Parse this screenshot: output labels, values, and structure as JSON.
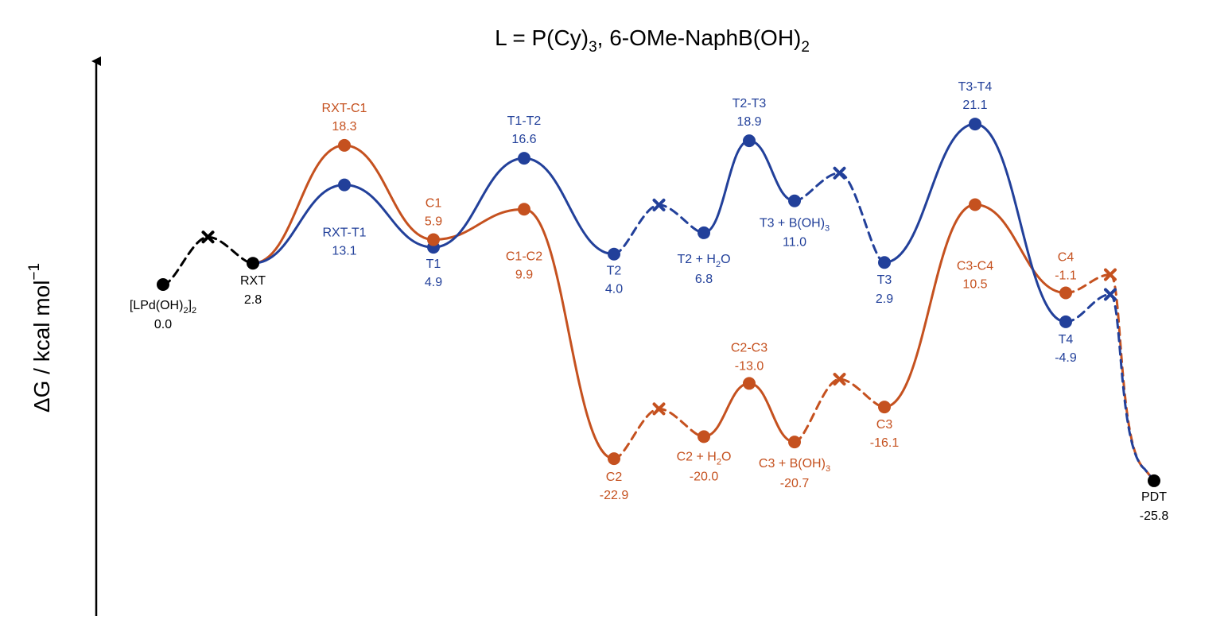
{
  "chart_data": {
    "type": "line",
    "title": {
      "main": "L = P(Cy)",
      "sub1": "3",
      "mid": ", 6-OMe-NaphB(OH)",
      "sub2": "2"
    },
    "ylabel": {
      "main": "ΔG / kcal mol",
      "sup": "−1"
    },
    "colors": {
      "shared": "#000000",
      "T": "#22409a",
      "C": "#c5511f"
    },
    "shared_points": [
      {
        "id": "LPdOH2",
        "name_main": "[LPd(OH)",
        "name_sub": "2",
        "name_bracket": "]",
        "name_sub2": "2",
        "value": "0.0",
        "y": 0.0
      },
      {
        "id": "RXT",
        "name": "RXT",
        "value": "2.8",
        "y": 2.8
      },
      {
        "id": "PDT",
        "name": "PDT",
        "value": "-25.8",
        "y": -25.8
      }
    ],
    "series": [
      {
        "name": "T",
        "points": [
          {
            "id": "RXT-T1",
            "name": "RXT-T1",
            "value": "13.1",
            "y": 13.1
          },
          {
            "id": "T1",
            "name": "T1",
            "value": "4.9",
            "y": 4.9
          },
          {
            "id": "T1-T2",
            "name": "T1-T2",
            "value": "16.6",
            "y": 16.6
          },
          {
            "id": "T2",
            "name": "T2",
            "value": "4.0",
            "y": 4.0
          },
          {
            "id": "T2+H2O",
            "name_main": "T2 + H",
            "name_sub": "2",
            "name_tail": "O",
            "value": "6.8",
            "y": 6.8
          },
          {
            "id": "T2-T3",
            "name": "T2-T3",
            "value": "18.9",
            "y": 18.9
          },
          {
            "id": "T3+BOH3",
            "name_main": "T3 + B(OH)",
            "name_sub": "3",
            "name_tail": "",
            "value": "11.0",
            "y": 11.0
          },
          {
            "id": "T3",
            "name": "T3",
            "value": "2.9",
            "y": 2.9
          },
          {
            "id": "T3-T4",
            "name": "T3-T4",
            "value": "21.1",
            "y": 21.1
          },
          {
            "id": "T4",
            "name": "T4",
            "value": "-4.9",
            "y": -4.9
          }
        ]
      },
      {
        "name": "C",
        "points": [
          {
            "id": "RXT-C1",
            "name": "RXT-C1",
            "value": "18.3",
            "y": 18.3
          },
          {
            "id": "C1",
            "name": "C1",
            "value": "5.9",
            "y": 5.9
          },
          {
            "id": "C1-C2",
            "name": "C1-C2",
            "value": "9.9",
            "y": 9.9
          },
          {
            "id": "C2",
            "name": "C2",
            "value": "-22.9",
            "y": -22.9
          },
          {
            "id": "C2+H2O",
            "name_main": "C2 + H",
            "name_sub": "2",
            "name_tail": "O",
            "value": "-20.0",
            "y": -20.0
          },
          {
            "id": "C2-C3",
            "name": "C2-C3",
            "value": "-13.0",
            "y": -13.0
          },
          {
            "id": "C3+BOH3",
            "name_main": "C3 + B(OH)",
            "name_sub": "3",
            "name_tail": "",
            "value": "-20.7",
            "y": -20.7
          },
          {
            "id": "C3",
            "name": "C3",
            "value": "-16.1",
            "y": -16.1
          },
          {
            "id": "C3-C4",
            "name": "C3-C4",
            "value": "10.5",
            "y": 10.5
          },
          {
            "id": "C4",
            "name": "C4",
            "value": "-1.1",
            "y": -1.1
          }
        ]
      }
    ]
  }
}
